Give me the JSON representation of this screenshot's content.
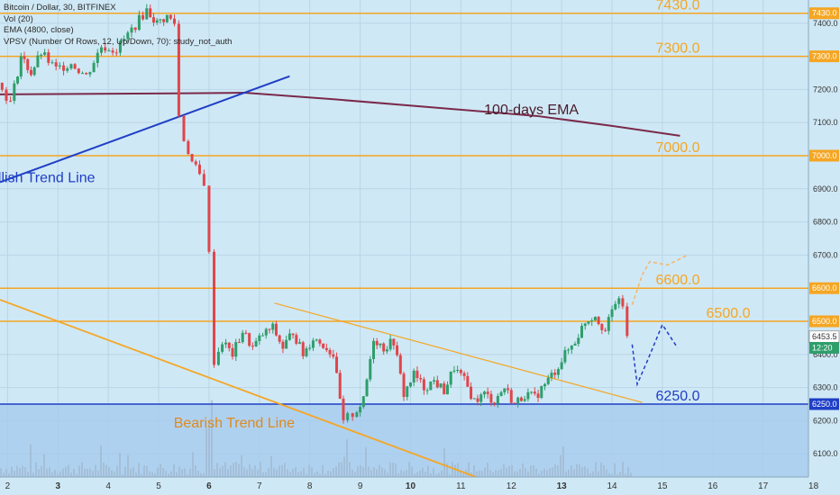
{
  "header": {
    "symbol": "Bitcoin / Dollar, 30, BITFINEX",
    "indicators": [
      "Vol (20)",
      "EMA (4800, close)",
      "VPSV (Number Of Rows, 12, Up/Down, 70): study_not_auth"
    ]
  },
  "colors": {
    "background": "#cfe8f5",
    "volume_zone": "#a9cdef",
    "horizontal_level": "#f5a623",
    "support_level": "#1f3fc6",
    "ema": "#7a2a4a",
    "bullish_trend": "#1f3fc6",
    "bearish_trend": "#f5a623",
    "candle_up": "#2e9e6b",
    "candle_down": "#e0454a",
    "projection": "#1f3fc6"
  },
  "chart_data": {
    "type": "candlestick",
    "title": "",
    "xlabel": "",
    "ylabel": "",
    "ylim": [
      6030,
      7470
    ],
    "x_ticks": [
      "2",
      "3",
      "4",
      "5",
      "6",
      "7",
      "8",
      "9",
      "10",
      "11",
      "12",
      "13",
      "14",
      "15",
      "16",
      "17",
      "18"
    ],
    "y_ticks": [
      6100,
      6200,
      6300,
      6400,
      6500,
      6600,
      6700,
      6800,
      6900,
      7000,
      7100,
      7200,
      7300,
      7400
    ],
    "levels": [
      {
        "label": "7430.0",
        "value": 7430,
        "color": "#f5a623"
      },
      {
        "label": "7300.0",
        "value": 7300,
        "color": "#f5a623"
      },
      {
        "label": "7000.0",
        "value": 7000,
        "color": "#f5a623"
      },
      {
        "label": "6600.0",
        "value": 6600,
        "color": "#f5a623"
      },
      {
        "label": "6500.0",
        "value": 6500,
        "color": "#f5a623"
      },
      {
        "label": "6250.0",
        "value": 6250,
        "color": "#1f3fc6"
      }
    ],
    "price_badges": [
      {
        "label": "7430.0",
        "value": 7430,
        "bg": "#f5a623",
        "fg": "#ffffff"
      },
      {
        "label": "7300.0",
        "value": 7300,
        "bg": "#f5a623",
        "fg": "#ffffff"
      },
      {
        "label": "7000.0",
        "value": 7000,
        "bg": "#f5a623",
        "fg": "#ffffff"
      },
      {
        "label": "6600.0",
        "value": 6600,
        "bg": "#f5a623",
        "fg": "#ffffff"
      },
      {
        "label": "6500.0",
        "value": 6500,
        "bg": "#f5a623",
        "fg": "#ffffff"
      },
      {
        "label": "6453.5",
        "value": 6453.5,
        "bg": "#ffffff",
        "fg": "#333333"
      },
      {
        "label": "12:20",
        "value": 6420,
        "bg": "#2e9e6b",
        "fg": "#ffffff"
      },
      {
        "label": "6250.0",
        "value": 6250,
        "bg": "#1f3fc6",
        "fg": "#ffffff"
      }
    ],
    "annotations": [
      {
        "text": "100-days EMA",
        "x": 12.4,
        "y": 7125,
        "color": "#4a1a2a"
      },
      {
        "text": "Bullish Trend Line",
        "x": 2.6,
        "y": 6920,
        "color": "#1f3fc6"
      },
      {
        "text": "Bearish Trend Line",
        "x": 6.5,
        "y": 6180,
        "color": "#e08a1a"
      }
    ],
    "ema_line": {
      "x": [
        1.85,
        5.3,
        6.7,
        8.5,
        10.5,
        12.5,
        14.0,
        15.35
      ],
      "y": [
        7185,
        7188,
        7190,
        7170,
        7145,
        7120,
        7090,
        7060
      ]
    },
    "bullish_trend": {
      "x": [
        1.85,
        7.6
      ],
      "y": [
        6920,
        7240
      ]
    },
    "bearish_trend": {
      "x": [
        1.85,
        11.3
      ],
      "y": [
        6565,
        6030
      ]
    },
    "triangle_upper": {
      "x": [
        7.3,
        14.6
      ],
      "y": [
        6555,
        6255
      ]
    },
    "projection_up": {
      "x": [
        14.4,
        14.6,
        14.75,
        15.1,
        15.5
      ],
      "y": [
        6550,
        6640,
        6680,
        6670,
        6700
      ]
    },
    "projection_down": {
      "x": [
        14.4,
        14.5,
        14.7,
        15.0,
        15.3
      ],
      "y": [
        6430,
        6310,
        6380,
        6490,
        6420
      ]
    },
    "price_path": {
      "x": [
        1.85,
        2.1,
        2.3,
        2.5,
        2.7,
        3.0,
        3.3,
        3.6,
        3.9,
        4.2,
        4.5,
        4.8,
        5.0,
        5.2,
        5.35,
        5.45,
        5.55,
        5.7,
        5.85,
        5.95,
        6.05,
        6.15,
        6.3,
        6.5,
        6.7,
        6.9,
        7.1,
        7.3,
        7.5,
        7.7,
        7.9,
        8.1,
        8.3,
        8.5,
        8.7,
        8.8,
        8.9,
        9.1,
        9.3,
        9.5,
        9.7,
        9.9,
        10.1,
        10.3,
        10.5,
        10.7,
        10.9,
        11.1,
        11.3,
        11.5,
        11.7,
        11.9,
        12.1,
        12.3,
        12.5,
        12.7,
        12.9,
        13.1,
        13.3,
        13.5,
        13.7,
        13.9,
        14.1,
        14.25,
        14.35
      ],
      "y": [
        7220,
        7160,
        7300,
        7250,
        7310,
        7260,
        7280,
        7240,
        7330,
        7320,
        7380,
        7440,
        7400,
        7420,
        7400,
        7120,
        7050,
        6980,
        6940,
        6920,
        6700,
        6380,
        6440,
        6400,
        6470,
        6420,
        6460,
        6480,
        6420,
        6470,
        6400,
        6450,
        6430,
        6400,
        6190,
        6210,
        6220,
        6260,
        6450,
        6420,
        6440,
        6280,
        6340,
        6300,
        6320,
        6290,
        6360,
        6320,
        6260,
        6280,
        6260,
        6300,
        6250,
        6280,
        6270,
        6310,
        6350,
        6400,
        6440,
        6500,
        6520,
        6470,
        6560,
        6550,
        6450
      ]
    },
    "volume_profile": [
      0.15,
      0.2,
      0.1,
      0.05,
      0.3,
      0.9,
      0.25,
      0.2,
      0.1,
      0.15,
      0.2,
      0.1,
      0.12,
      0.18,
      0.1,
      0.08,
      0.14,
      0.1,
      0.2,
      0.6,
      0.1,
      0.15,
      0.3,
      0.1,
      0.08,
      0.1,
      0.15,
      0.1,
      0.12,
      0.2,
      0.1
    ]
  }
}
